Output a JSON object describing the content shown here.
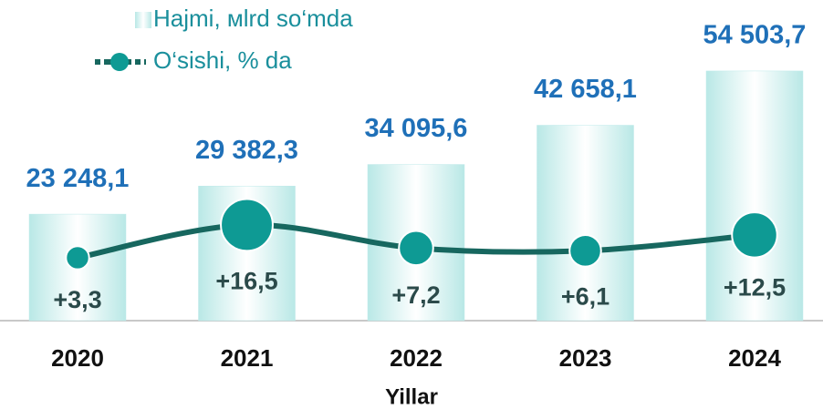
{
  "chart_data": {
    "type": "bar",
    "x_label": "Yillar",
    "categories": [
      "2020",
      "2021",
      "2022",
      "2023",
      "2024"
    ],
    "ylim": [
      0,
      70000
    ],
    "y2lim": [
      -22,
      107
    ],
    "series": [
      {
        "name": "Hajmi, мlrd so‘mda",
        "type": "bar",
        "color": "#bfeaea",
        "values": [
          23248.1,
          29382.3,
          34095.6,
          42658.1,
          54503.7
        ],
        "value_labels": [
          "23 248,1",
          "29 382,3",
          "34 095,6",
          "42 658,1",
          "54 503,7"
        ]
      },
      {
        "name": "O‘sishi, % da",
        "type": "line",
        "axis": "y2",
        "color": "#0e9a94",
        "values": [
          3.3,
          16.5,
          7.2,
          6.1,
          12.5
        ],
        "value_labels": [
          "+3,3",
          "+16,5",
          "+7,2",
          "+6,1",
          "+12,5"
        ]
      }
    ]
  }
}
